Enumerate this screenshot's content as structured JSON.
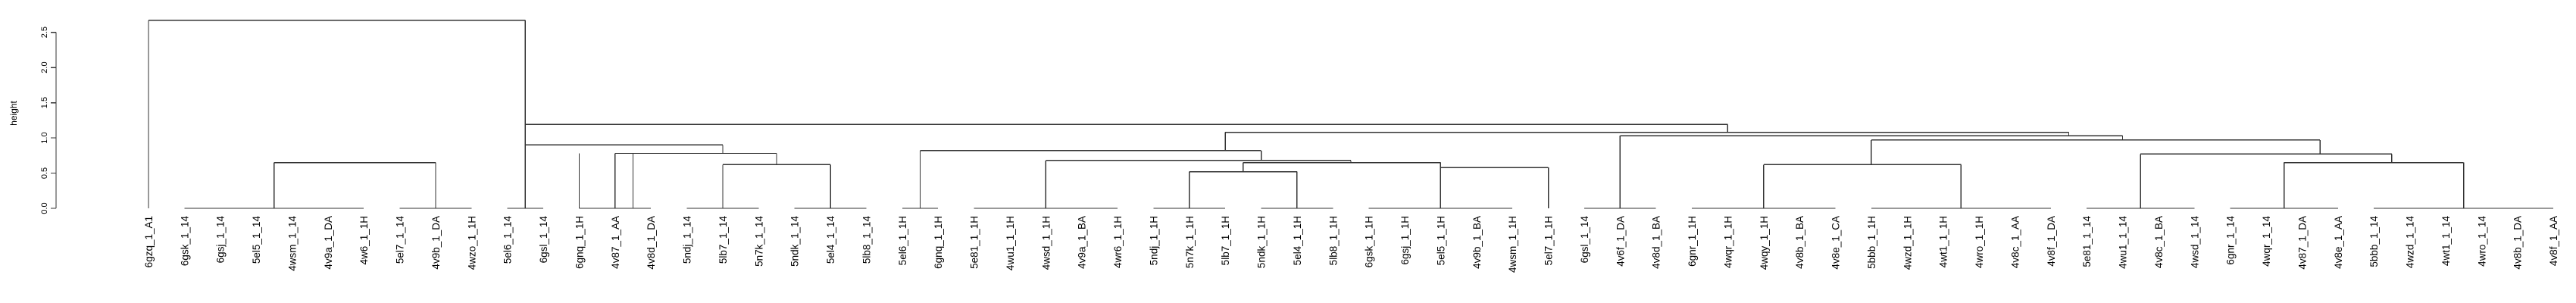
{
  "chart_data": {
    "type": "dendrogram",
    "ylabel": "height",
    "ylim": [
      0,
      2.7
    ],
    "yticks": [
      0.0,
      0.5,
      1.0,
      1.5,
      2.0,
      2.5
    ],
    "ytick_labels": [
      "0.0",
      "0.5",
      "1.0",
      "1.5",
      "2.0",
      "2.5"
    ],
    "leaves": [
      "6gzq_1_A1",
      "6gsk_1_14",
      "6gsj_1_14",
      "5el5_1_14",
      "4wsm_1_14",
      "4v9a_1_DA",
      "4w6_1_1H",
      "5el7_1_14",
      "4v9b_1_DA",
      "4wzo_1_1H",
      "5el6_1_14",
      "6gsl_1_14",
      "6gnq_1_1H",
      "4v87_1_AA",
      "4v8d_1_DA",
      "5ndj_1_14",
      "5lb7_1_14",
      "5n7k_1_14",
      "5ndk_1_14",
      "5el4_1_14",
      "5lb8_1_14",
      "5el6_1_1H",
      "6gnq_1_1H",
      "5e81_1_1H",
      "4wu1_1_1H",
      "4wsd_1_1H",
      "4v9a_1_BA",
      "4wr6_1_1H",
      "5ndj_1_1H",
      "5n7k_1_1H",
      "5lb7_1_1H",
      "5ndk_1_1H",
      "5el4_1_1H",
      "5lb8_1_1H",
      "6gsk_1_1H",
      "6gsj_1_1H",
      "5el5_1_1H",
      "4v9b_1_BA",
      "4wsm_1_1H",
      "5el7_1_1H",
      "6gsl_1_14",
      "4v6f_1_DA",
      "4v8d_1_BA",
      "6gnr_1_1H",
      "4wqr_1_1H",
      "4wqy_1_1H",
      "4v8b_1_BA",
      "4v8e_1_CA",
      "5bbb_1_1H",
      "4wzd_1_1H",
      "4wt1_1_1H",
      "4wro_1_1H",
      "4v8c_1_AA",
      "4v8f_1_DA",
      "5e81_1_14",
      "4wu1_1_14",
      "4v8c_1_BA",
      "4wsd_1_14",
      "6gnr_1_14",
      "4wqr_1_14",
      "4v87_1_DA",
      "4v8e_1_AA",
      "5bbb_1_14",
      "4wzd_1_14",
      "4wt1_1_14",
      "4wro_1_14",
      "4v8b_1_DA",
      "4v8f_1_AA"
    ],
    "merges": [
      {
        "left": [
          1,
          2,
          3,
          4,
          5,
          6
        ],
        "right": [],
        "height": 0.0
      },
      {
        "left": [
          7,
          8,
          9
        ],
        "right": [],
        "height": 0.0
      },
      {
        "left": [
          1,
          2,
          3,
          4,
          5,
          6
        ],
        "right": [
          7,
          8,
          9
        ],
        "height": 0.65
      },
      {
        "left": [
          10
        ],
        "right": [
          11
        ],
        "height": 0.0
      },
      {
        "left": [
          13,
          14
        ],
        "right": [],
        "height": 0.0
      },
      {
        "left": [
          15,
          16,
          17
        ],
        "right": [],
        "height": 0.0
      },
      {
        "left": [
          18,
          19,
          20
        ],
        "right": [],
        "height": 0.0
      },
      {
        "left": [
          15,
          16,
          17
        ],
        "right": [
          18,
          19,
          20
        ],
        "height": 0.62
      },
      {
        "left": [
          12,
          13,
          14
        ],
        "right": [
          15,
          16,
          17,
          18,
          19,
          20
        ],
        "height": 0.78
      },
      {
        "left": [
          12
        ],
        "right": [
          13,
          14
        ],
        "height": 0.0
      },
      {
        "left": [
          10,
          11
        ],
        "right": [
          12,
          13,
          14,
          15,
          16,
          17,
          18,
          19,
          20
        ],
        "height": 0.9
      },
      {
        "left": [
          0
        ],
        "right": [
          1,
          2,
          3,
          4,
          5,
          6,
          7,
          8,
          9,
          10,
          11,
          12,
          13,
          14,
          15,
          16,
          17,
          18,
          19,
          20
        ],
        "height": 2.67
      },
      {
        "left": [
          21
        ],
        "right": [
          22
        ],
        "height": 0.0
      },
      {
        "left": [
          23,
          24,
          25,
          26,
          27
        ],
        "right": [],
        "height": 0.0
      },
      {
        "left": [
          28,
          29,
          30
        ],
        "right": [],
        "height": 0.0
      },
      {
        "left": [
          31,
          32,
          33
        ],
        "right": [],
        "height": 0.0
      },
      {
        "left": [
          34,
          35,
          36,
          37,
          38
        ],
        "right": [],
        "height": 0.0
      },
      {
        "left": [
          39
        ],
        "right": [],
        "height": 0.0
      },
      {
        "left": [
          28,
          29,
          30
        ],
        "right": [
          31,
          32,
          33
        ],
        "height": 0.52
      },
      {
        "left": [
          28,
          29,
          30,
          31,
          32,
          33
        ],
        "right": [
          34,
          35,
          36,
          37,
          38
        ],
        "height": 0.65
      },
      {
        "left": [
          34,
          35,
          36,
          37,
          38
        ],
        "right": [
          39
        ],
        "height": 0.58
      },
      {
        "left": [
          23,
          24,
          25,
          26,
          27
        ],
        "right": [
          28,
          29,
          30,
          31,
          32,
          33,
          34,
          35,
          36,
          37,
          38,
          39
        ],
        "height": 0.68
      },
      {
        "left": [
          21,
          22
        ],
        "right": [
          23,
          24,
          25,
          26,
          27,
          28,
          29,
          30,
          31,
          32,
          33,
          34,
          35,
          36,
          37,
          38,
          39
        ],
        "height": 0.82
      },
      {
        "left": [
          40,
          41,
          42
        ],
        "right": [],
        "height": 0.0
      },
      {
        "left": [
          43,
          44,
          45,
          46,
          47
        ],
        "right": [],
        "height": 0.0
      },
      {
        "left": [
          48,
          49,
          50,
          51,
          52,
          53
        ],
        "right": [],
        "height": 0.0
      },
      {
        "left": [
          43,
          44,
          45,
          46,
          47
        ],
        "right": [
          48,
          49,
          50,
          51,
          52,
          53
        ],
        "height": 0.62
      },
      {
        "left": [
          54,
          55,
          56,
          57
        ],
        "right": [],
        "height": 0.0
      },
      {
        "left": [
          58,
          59,
          60,
          61
        ],
        "right": [],
        "height": 0.0
      },
      {
        "left": [
          62,
          63,
          64,
          65,
          66,
          67
        ],
        "right": [],
        "height": 0.0
      },
      {
        "left": [
          58,
          59,
          60,
          61
        ],
        "right": [
          62,
          63,
          64,
          65,
          66,
          67
        ],
        "height": 0.65
      },
      {
        "left": [
          54,
          55,
          56,
          57
        ],
        "right": [
          58,
          59,
          60,
          61,
          62,
          63,
          64,
          65,
          66,
          67
        ],
        "height": 0.77
      },
      {
        "left": [
          43,
          44,
          45,
          46,
          47,
          48,
          49,
          50,
          51,
          52,
          53
        ],
        "right": [
          54,
          55,
          56,
          57,
          58,
          59,
          60,
          61,
          62,
          63,
          64,
          65,
          66,
          67
        ],
        "height": 0.97
      },
      {
        "left": [
          40,
          41,
          42
        ],
        "right": [
          43,
          44,
          45,
          46,
          47,
          48,
          49,
          50,
          51,
          52,
          53,
          54,
          55,
          56,
          57,
          58,
          59,
          60,
          61,
          62,
          63,
          64,
          65,
          66,
          67
        ],
        "height": 1.03
      },
      {
        "left": [
          21,
          22,
          23,
          24,
          25,
          26,
          27,
          28,
          29,
          30,
          31,
          32,
          33,
          34,
          35,
          36,
          37,
          38,
          39
        ],
        "right": [
          40,
          41,
          42,
          43,
          44,
          45,
          46,
          47,
          48,
          49,
          50,
          51,
          52,
          53,
          54,
          55,
          56,
          57,
          58,
          59,
          60,
          61,
          62,
          63,
          64,
          65,
          66,
          67
        ],
        "height": 1.08
      },
      {
        "left": [
          1,
          2,
          3,
          4,
          5,
          6,
          7,
          8,
          9,
          10,
          11,
          12,
          13,
          14,
          15,
          16,
          17,
          18,
          19,
          20
        ],
        "right": [
          21,
          22,
          23,
          24,
          25,
          26,
          27,
          28,
          29,
          30,
          31,
          32,
          33,
          34,
          35,
          36,
          37,
          38,
          39,
          40,
          41,
          42,
          43,
          44,
          45,
          46,
          47,
          48,
          49,
          50,
          51,
          52,
          53,
          54,
          55,
          56,
          57,
          58,
          59,
          60,
          61,
          62,
          63,
          64,
          65,
          66,
          67
        ],
        "height": 1.19
      }
    ]
  }
}
